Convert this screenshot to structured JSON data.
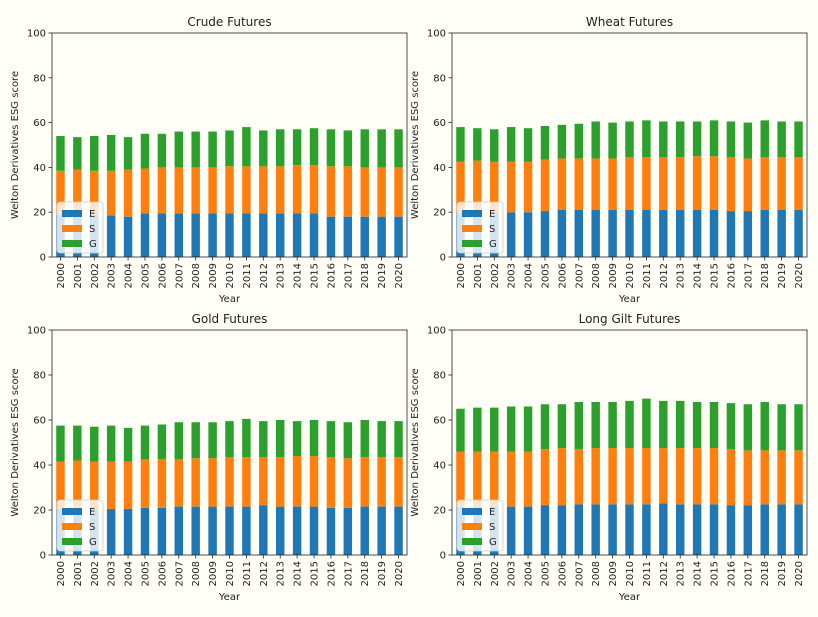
{
  "chart_data": [
    {
      "type": "bar",
      "stacked": true,
      "title": "Crude Futures",
      "xlabel": "Year",
      "ylabel": "Welton Derivatives ESG score",
      "ylim": [
        0,
        100
      ],
      "yticks": [
        0,
        20,
        40,
        60,
        80,
        100
      ],
      "legend": "lower-left",
      "grid": false,
      "categories": [
        "2000",
        "2001",
        "2002",
        "2003",
        "2004",
        "2005",
        "2006",
        "2007",
        "2008",
        "2009",
        "2010",
        "2011",
        "2012",
        "2013",
        "2014",
        "2015",
        "2016",
        "2017",
        "2018",
        "2019",
        "2020"
      ],
      "series": [
        {
          "name": "E",
          "color": "#1f77b4",
          "values": [
            19,
            19,
            19,
            18.5,
            18,
            19.5,
            19.5,
            19.5,
            19.5,
            19.5,
            19.5,
            19.5,
            19.5,
            19.5,
            19.5,
            19.5,
            18,
            18,
            18,
            18,
            18
          ]
        },
        {
          "name": "S",
          "color": "#ff7f0e",
          "values": [
            19.5,
            20,
            19.5,
            20,
            21,
            20,
            20.5,
            20.5,
            20.5,
            20.5,
            21,
            21,
            21,
            21,
            21.5,
            21.5,
            22.5,
            22.5,
            22,
            22,
            22
          ]
        },
        {
          "name": "G",
          "color": "#2ca02c",
          "values": [
            15.5,
            14.5,
            15.5,
            16,
            14.5,
            15.5,
            15,
            16,
            16,
            16,
            16,
            17.5,
            16,
            16.5,
            16,
            16.5,
            16.5,
            16,
            17,
            17,
            17
          ]
        }
      ]
    },
    {
      "type": "bar",
      "stacked": true,
      "title": "Wheat Futures",
      "xlabel": "Year",
      "ylabel": "Welton Derivatives ESG score",
      "ylim": [
        0,
        100
      ],
      "yticks": [
        0,
        20,
        40,
        60,
        80,
        100
      ],
      "legend": "lower-left",
      "grid": false,
      "categories": [
        "2000",
        "2001",
        "2002",
        "2003",
        "2004",
        "2005",
        "2006",
        "2007",
        "2008",
        "2009",
        "2010",
        "2011",
        "2012",
        "2013",
        "2014",
        "2015",
        "2016",
        "2017",
        "2018",
        "2019",
        "2020"
      ],
      "series": [
        {
          "name": "E",
          "color": "#1f77b4",
          "values": [
            20,
            20,
            20,
            20,
            20,
            20.5,
            21,
            21,
            21,
            21,
            21,
            21,
            21,
            21,
            21,
            21,
            20.5,
            20.5,
            21,
            21,
            21
          ]
        },
        {
          "name": "S",
          "color": "#ff7f0e",
          "values": [
            22.5,
            23,
            22.5,
            22.5,
            22.5,
            23,
            23,
            23,
            23,
            23,
            23.5,
            23.5,
            23.5,
            23.5,
            24,
            24,
            24,
            23.5,
            23.5,
            23.5,
            23.5
          ]
        },
        {
          "name": "G",
          "color": "#2ca02c",
          "values": [
            15.5,
            14.5,
            14.5,
            15.5,
            15,
            15,
            15,
            15.5,
            16.5,
            16,
            16,
            16.5,
            16,
            16,
            15.5,
            16,
            16,
            16,
            16.5,
            16,
            16
          ]
        }
      ]
    },
    {
      "type": "bar",
      "stacked": true,
      "title": "Gold Futures",
      "xlabel": "Year",
      "ylabel": "Welton Derivatives ESG score",
      "ylim": [
        0,
        100
      ],
      "yticks": [
        0,
        20,
        40,
        60,
        80,
        100
      ],
      "legend": "lower-left",
      "grid": false,
      "categories": [
        "2000",
        "2001",
        "2002",
        "2003",
        "2004",
        "2005",
        "2006",
        "2007",
        "2008",
        "2009",
        "2010",
        "2011",
        "2012",
        "2013",
        "2014",
        "2015",
        "2016",
        "2017",
        "2018",
        "2019",
        "2020"
      ],
      "series": [
        {
          "name": "E",
          "color": "#1f77b4",
          "values": [
            20.5,
            20.5,
            20.5,
            20.5,
            20.5,
            21,
            21,
            21.5,
            21.5,
            21.5,
            21.5,
            21.5,
            22,
            21.5,
            21.5,
            21.5,
            21,
            21,
            21.5,
            21.5,
            21.5
          ]
        },
        {
          "name": "S",
          "color": "#ff7f0e",
          "values": [
            21,
            21.5,
            21,
            21,
            21,
            21.5,
            21.5,
            21,
            21.5,
            21.5,
            22,
            22,
            21.5,
            22,
            22.5,
            22.5,
            22.5,
            22,
            22,
            22,
            22
          ]
        },
        {
          "name": "G",
          "color": "#2ca02c",
          "values": [
            16,
            15.5,
            15.5,
            16,
            15,
            15,
            15.5,
            16.5,
            16,
            16,
            16,
            17,
            16,
            16.5,
            15.5,
            16,
            16,
            16,
            16.5,
            16,
            16
          ]
        }
      ]
    },
    {
      "type": "bar",
      "stacked": true,
      "title": "Long Gilt Futures",
      "xlabel": "Year",
      "ylabel": "Welton Derivatives ESG score",
      "ylim": [
        0,
        100
      ],
      "yticks": [
        0,
        20,
        40,
        60,
        80,
        100
      ],
      "legend": "lower-left",
      "grid": false,
      "categories": [
        "2000",
        "2001",
        "2002",
        "2003",
        "2004",
        "2005",
        "2006",
        "2007",
        "2008",
        "2009",
        "2010",
        "2011",
        "2012",
        "2013",
        "2014",
        "2015",
        "2016",
        "2017",
        "2018",
        "2019",
        "2020"
      ],
      "series": [
        {
          "name": "E",
          "color": "#1f77b4",
          "values": [
            21.5,
            21.5,
            21.5,
            21.5,
            21.5,
            22,
            22,
            22.5,
            22.5,
            22.5,
            22.5,
            22.5,
            23,
            22.5,
            22.5,
            22.5,
            22,
            22,
            22.5,
            22.5,
            22.5
          ]
        },
        {
          "name": "S",
          "color": "#ff7f0e",
          "values": [
            24.5,
            24.5,
            24.5,
            24.5,
            24.5,
            25,
            25.5,
            24.5,
            25,
            25,
            25,
            25,
            24.5,
            25,
            25,
            25,
            25,
            24.5,
            24,
            24,
            24
          ]
        },
        {
          "name": "G",
          "color": "#2ca02c",
          "values": [
            19,
            19.5,
            19.5,
            20,
            20,
            20,
            19.5,
            21,
            20.5,
            20.5,
            21,
            22,
            21,
            21,
            20.5,
            20.5,
            20.5,
            20.5,
            21.5,
            20.5,
            20.5
          ]
        }
      ]
    }
  ]
}
